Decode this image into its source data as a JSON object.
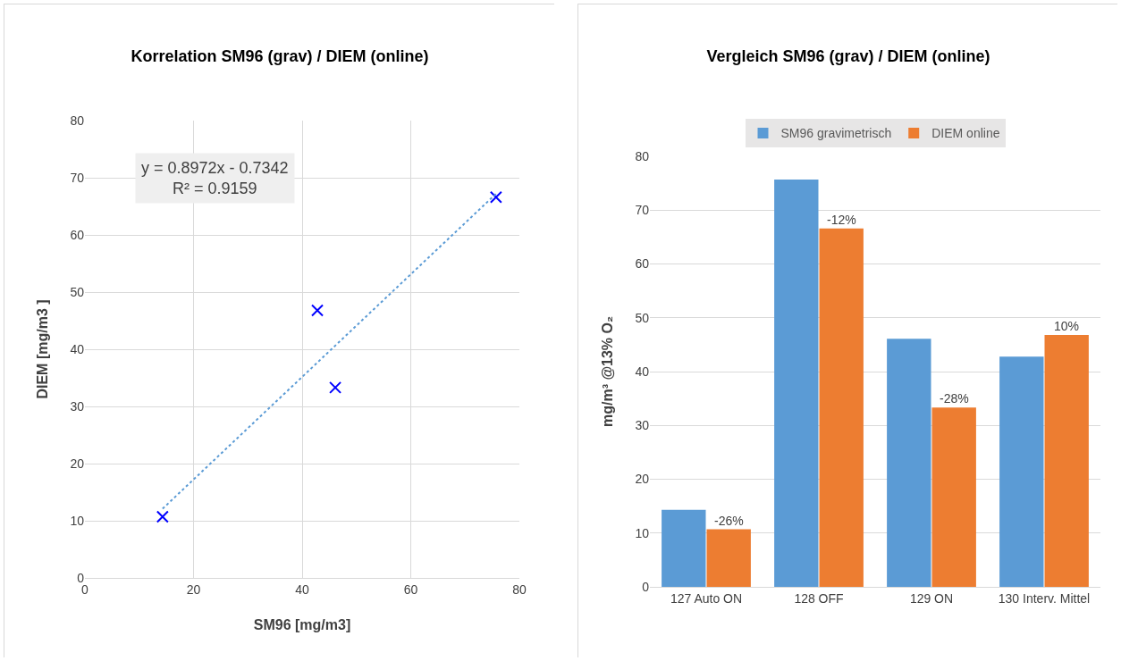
{
  "chart_data": [
    {
      "type": "scatter",
      "title": "Korrelation SM96 (grav) / DIEM (online)",
      "xlabel": "SM96 [mg/m3]",
      "ylabel": "DIEM [mg/m3 ]",
      "series": [
        {
          "color": "#0000ff",
          "marker": "cross",
          "x": [
            14.3,
            42.8,
            46.1,
            75.7
          ],
          "values": [
            10.7,
            46.8,
            33.3,
            66.6
          ]
        },
        {
          "type": "line",
          "color": "#5b9bd5",
          "marker": "none",
          "line_style": "dotted",
          "x": [
            14.3,
            75.7
          ],
          "values": [
            12.1,
            67.2
          ]
        }
      ],
      "annotations": [
        "y = 0.8972x - 0.7342",
        "R² = 0.9159"
      ],
      "xlim": [
        0,
        80
      ],
      "xticks": [
        0,
        20,
        40,
        60,
        80
      ],
      "ylim": [
        0,
        80
      ],
      "yticks": [
        0,
        10,
        20,
        30,
        40,
        50,
        60,
        70,
        80
      ],
      "grid": true,
      "legend": false
    },
    {
      "type": "bar",
      "title": "Vergleich SM96 (grav) / DIEM (online)",
      "ylabel": "mg/m³ @13% O₂",
      "categories": [
        "127 Auto ON",
        "128 OFF",
        "129 ON",
        "130 Interv. Mittel"
      ],
      "series": [
        {
          "name": "SM96 gravimetrisch",
          "color": "#5b9bd5",
          "values": [
            14.3,
            75.7,
            46.1,
            42.8
          ]
        },
        {
          "name": "DIEM online",
          "color": "#ed7d31",
          "values": [
            10.7,
            66.6,
            33.3,
            46.8
          ]
        }
      ],
      "annotations": [
        {
          "text": "-26%",
          "x": "127 Auto ON",
          "y": 10.7
        },
        {
          "text": "-12%",
          "x": "128 OFF",
          "y": 66.6
        },
        {
          "text": "-28%",
          "x": "129 ON",
          "y": 33.3
        },
        {
          "text": "10%",
          "x": "130 Interv. Mittel",
          "y": 46.8
        }
      ],
      "ylim": [
        0,
        80
      ],
      "yticks": [
        0,
        10,
        20,
        30,
        40,
        50,
        60,
        70,
        80
      ],
      "grid": "y",
      "legend": "top"
    }
  ]
}
